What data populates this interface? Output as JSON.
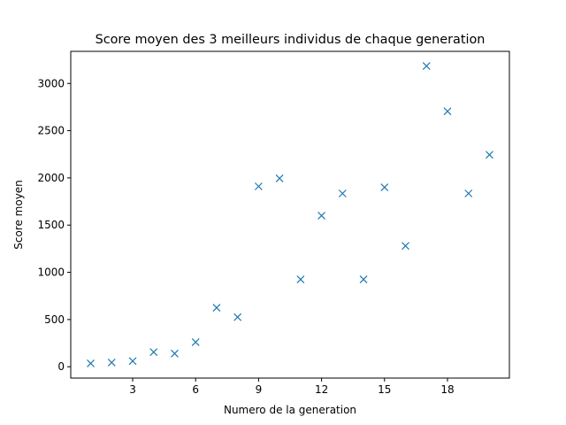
{
  "chart_data": {
    "type": "scatter",
    "title": "Score moyen des 3 meilleurs individus de chaque generation",
    "xlabel": "Numero de la generation",
    "ylabel": "Score moyen",
    "xlim": [
      0.05,
      20.95
    ],
    "ylim": [
      -120,
      3340
    ],
    "xticks": [
      3,
      6,
      9,
      12,
      15,
      18
    ],
    "yticks": [
      0,
      500,
      1000,
      1500,
      2000,
      2500,
      3000
    ],
    "grid": false,
    "marker": "x",
    "color": "#1f77b4",
    "series": [
      {
        "x": [
          1,
          2,
          3,
          4,
          5,
          6,
          7,
          8,
          9,
          10,
          11,
          12,
          13,
          14,
          15,
          16,
          17,
          18,
          19,
          20
        ],
        "y": [
          35,
          45,
          60,
          155,
          140,
          260,
          625,
          525,
          1910,
          1995,
          925,
          1600,
          1835,
          925,
          1900,
          1280,
          3185,
          2705,
          1835,
          2245
        ]
      }
    ]
  }
}
